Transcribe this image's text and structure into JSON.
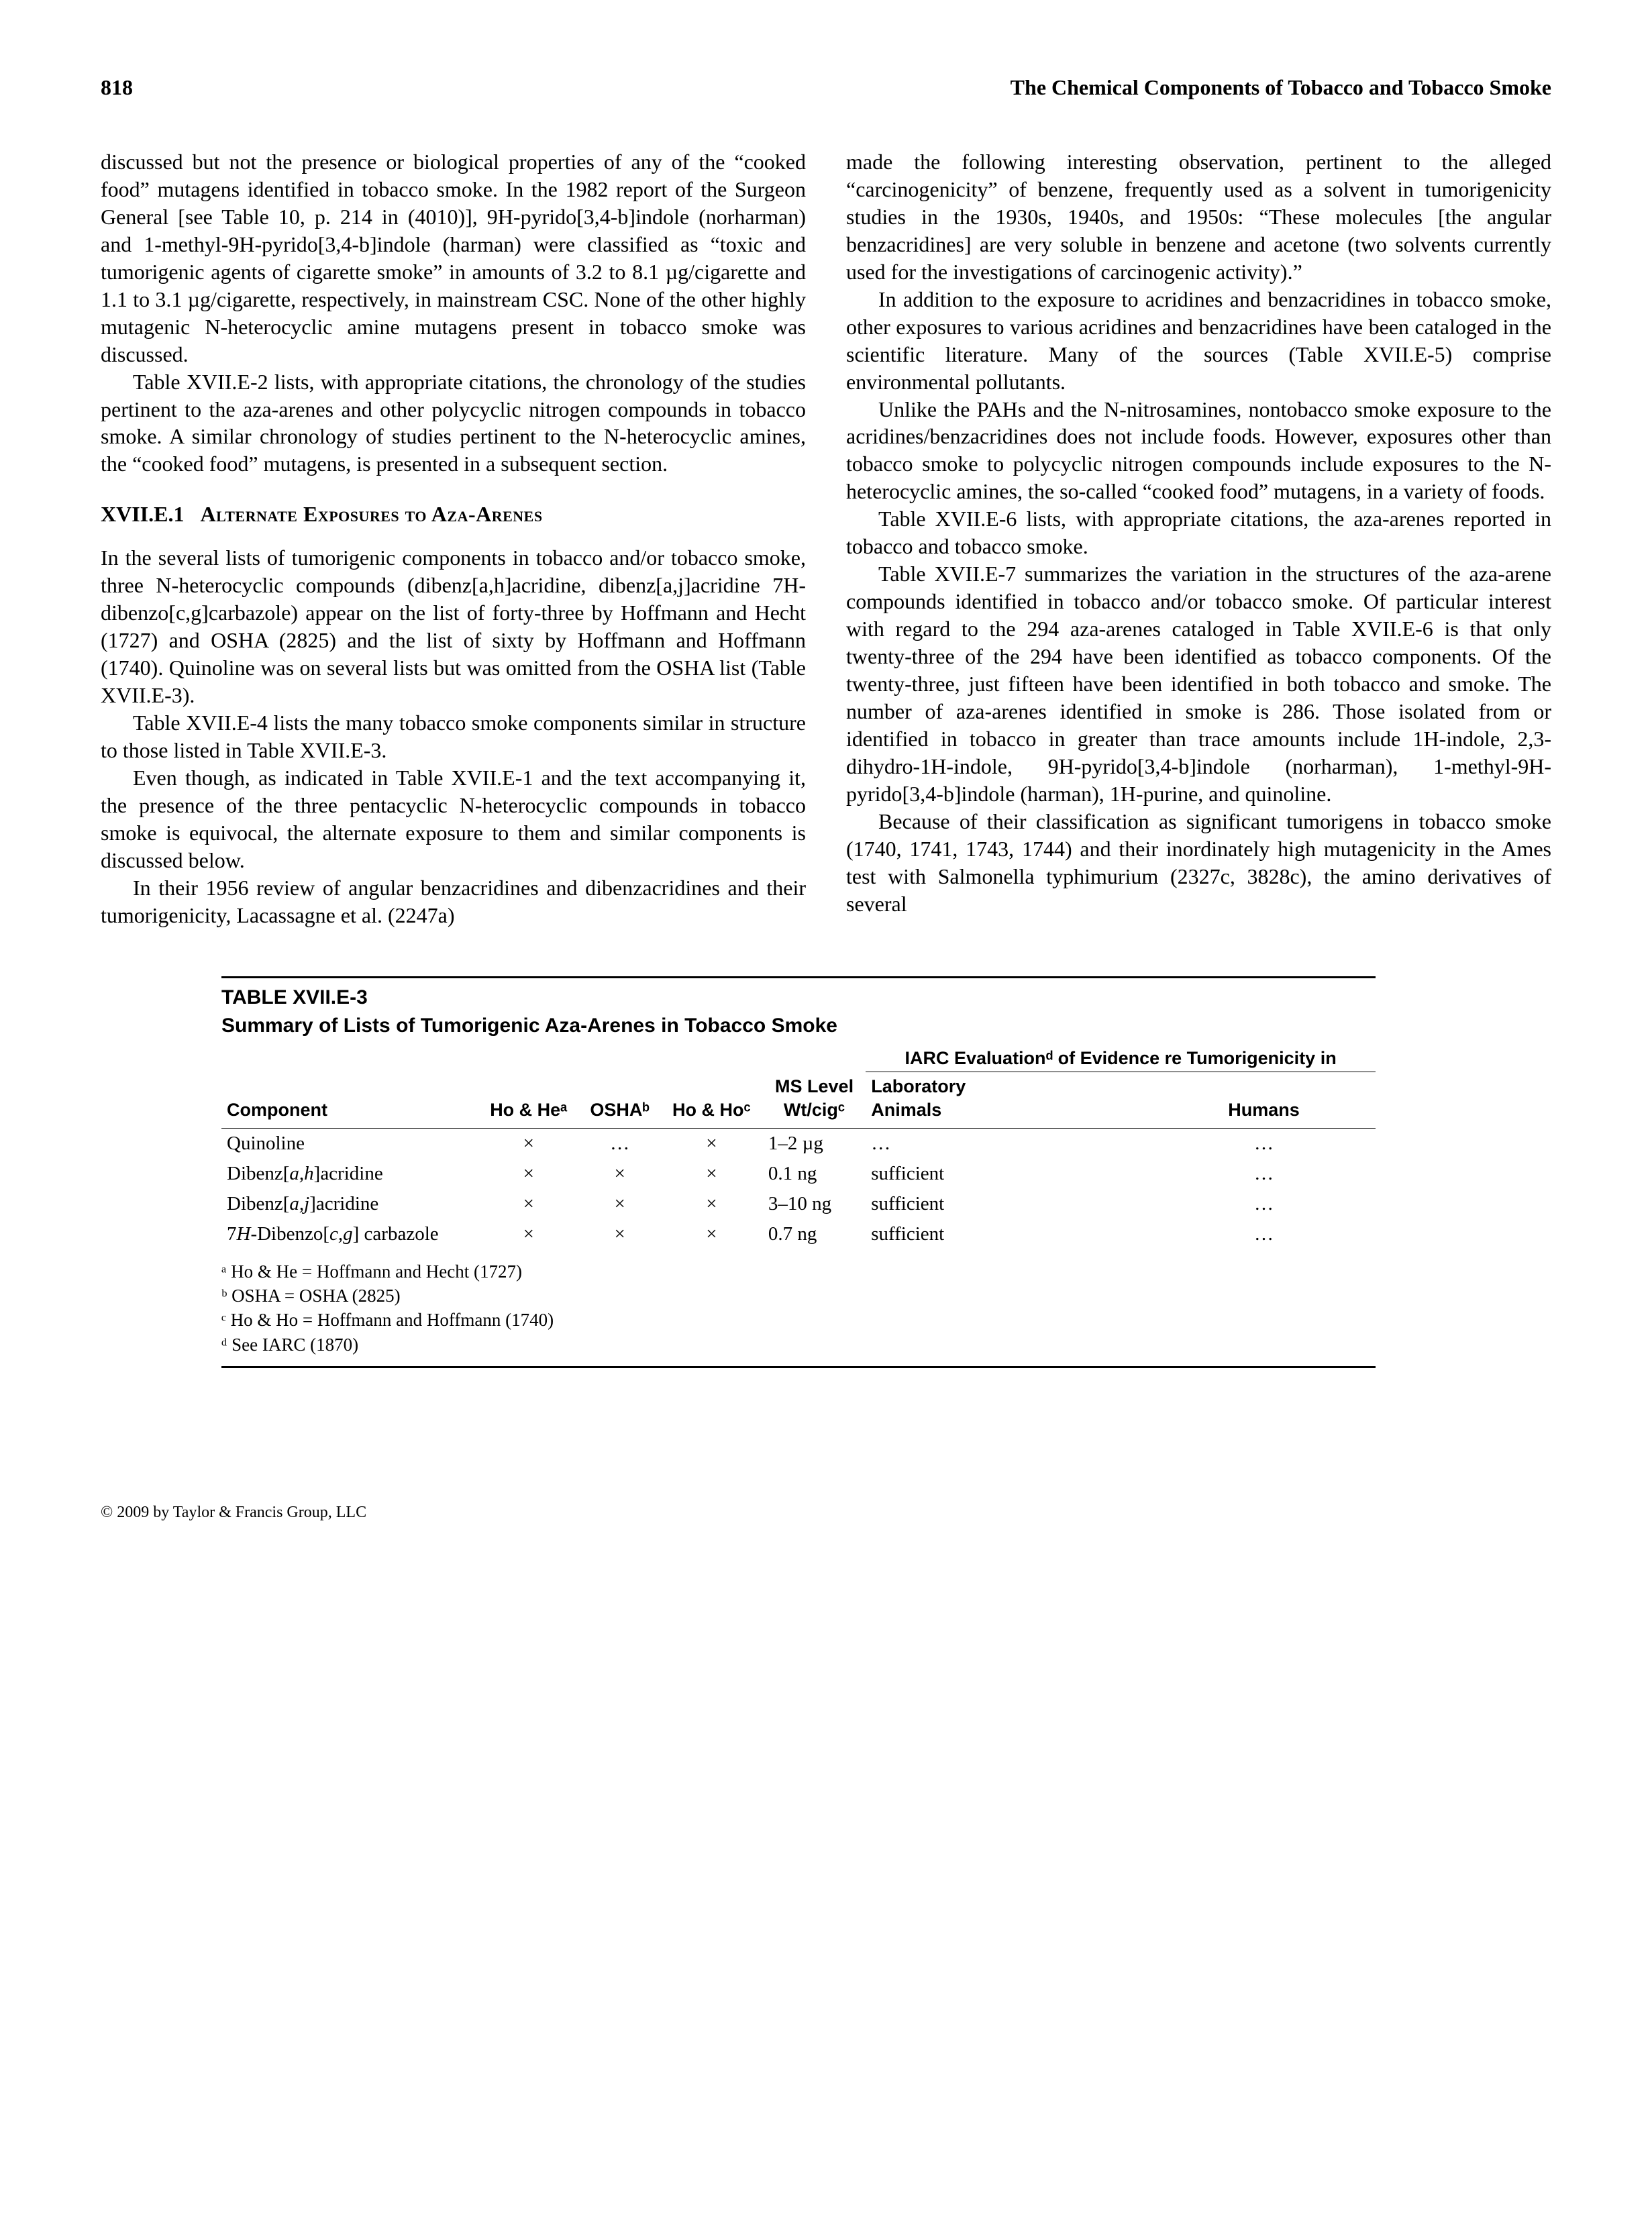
{
  "header": {
    "page_number": "818",
    "running_title": "The Chemical Components of Tobacco and Tobacco Smoke"
  },
  "left_column": {
    "p1": "discussed but not the presence or biological properties of any of the “cooked food” mutagens identified in tobacco smoke. In the 1982 report of the Surgeon General [see Table 10, p. 214 in (4010)], 9H-pyrido[3,4-b]indole (norharman) and 1-methyl-9H-pyrido[3,4-b]indole (harman) were classified as “toxic and tumorigenic agents of cigarette smoke” in amounts of 3.2 to 8.1 µg/cigarette and 1.1 to 3.1 µg/cigarette, respectively, in mainstream CSC. None of the other highly mutagenic N-heterocyclic amine mutagens present in tobacco smoke was discussed.",
    "p2": "Table XVII.E-2 lists, with appropriate citations, the chronology of the studies pertinent to the aza-arenes and other polycyclic nitrogen compounds in tobacco smoke. A similar chronology of studies pertinent to the N-heterocyclic amines, the “cooked food” mutagens, is presented in a subsequent section.",
    "section_num": "XVII.E.1",
    "section_title": "Alternate Exposures to Aza-Arenes",
    "p3": "In the several lists of tumorigenic components in tobacco and/or tobacco smoke, three N-heterocyclic compounds (dibenz[a,h]acridine, dibenz[a,j]acridine 7H-dibenzo[c,g]carbazole) appear on the list of forty-three by Hoffmann and Hecht (1727) and OSHA (2825) and the list of sixty by Hoffmann and Hoffmann (1740). Quinoline was on several lists but was omitted from the OSHA list (Table XVII.E-3).",
    "p4": "Table XVII.E-4 lists the many tobacco smoke components similar in structure to those listed in Table XVII.E-3.",
    "p5": "Even though, as indicated in Table XVII.E-1 and the text accompanying it, the presence of the three pentacyclic N-heterocyclic compounds in tobacco smoke is equivocal, the alternate exposure to them and similar components is discussed below.",
    "p6": "In their 1956 review of angular benzacridines and dibenzacridines and their tumorigenicity, Lacassagne et al. (2247a)"
  },
  "right_column": {
    "p1": "made the following interesting observation, pertinent to the alleged “carcinogenicity” of benzene, frequently used as a solvent in tumorigenicity studies in the 1930s, 1940s, and 1950s: “These molecules [the angular benzacridines] are very soluble in benzene and acetone (two solvents currently used for the investigations of carcinogenic activity).”",
    "p2": "In addition to the exposure to acridines and benzacridines in tobacco smoke, other exposures to various acridines and benzacridines have been cataloged in the scientific literature. Many of the sources (Table XVII.E-5) comprise environmental pollutants.",
    "p3": "Unlike the PAHs and the N-nitrosamines, nontobacco smoke exposure to the acridines/benzacridines does not include foods. However, exposures other than tobacco smoke to polycyclic nitrogen compounds include exposures to the N-heterocyclic amines, the so-called “cooked food” mutagens, in a variety of foods.",
    "p4": "Table XVII.E-6 lists, with appropriate citations, the aza-arenes reported in tobacco and tobacco smoke.",
    "p5": "Table XVII.E-7 summarizes the variation in the structures of the aza-arene compounds identified in tobacco and/or tobacco smoke. Of particular interest with regard to the 294 aza-arenes cataloged in Table XVII.E-6 is that only twenty-three of the 294 have been identified as tobacco components. Of the twenty-three, just fifteen have been identified in both tobacco and smoke. The number of aza-arenes identified in smoke is 286. Those isolated from or identified in tobacco in greater than trace amounts include 1H-indole, 2,3-dihydro-1H-indole, 9H-pyrido[3,4-b]indole (norharman), 1-methyl-9H-pyrido[3,4-b]indole (harman), 1H-purine, and quinoline.",
    "p6": "Because of their classification as significant tumorigens in tobacco smoke (1740, 1741, 1743, 1744) and their inordinately high mutagenicity in the Ames test with Salmonella typhimurium (2327c, 3828c), the amino derivatives of several"
  },
  "table": {
    "label": "TABLE XVII.E-3",
    "caption": "Summary of Lists of Tumorigenic Aza-Arenes in Tobacco Smoke",
    "spanner": "IARC Evaluationᵈ of Evidence re Tumorigenicity in",
    "headers": {
      "component": "Component",
      "hohe": "Ho & Heᵃ",
      "osha": "OSHAᵇ",
      "hoho": "Ho & Hoᶜ",
      "mslevel_line1": "MS Level",
      "mslevel_line2": "Wt/cigᶜ",
      "animals_line1": "Laboratory",
      "animals_line2": "Animals",
      "humans": "Humans"
    },
    "rows": [
      {
        "component": "Quinoline",
        "hohe": "×",
        "osha": "…",
        "hoho": "×",
        "ms": "1–2 µg",
        "animals": "…",
        "humans": "…"
      },
      {
        "component": "Dibenz[a,h]acridine",
        "hohe": "×",
        "osha": "×",
        "hoho": "×",
        "ms": "0.1 ng",
        "animals": "sufficient",
        "humans": "…"
      },
      {
        "component": "Dibenz[a,j]acridine",
        "hohe": "×",
        "osha": "×",
        "hoho": "×",
        "ms": "3–10 ng",
        "animals": "sufficient",
        "humans": "…"
      },
      {
        "component": "7H-Dibenzo[c,g] carbazole",
        "hohe": "×",
        "osha": "×",
        "hoho": "×",
        "ms": "0.7 ng",
        "animals": "sufficient",
        "humans": "…"
      }
    ],
    "footnotes": {
      "a": "ᵃ Ho & He = Hoffmann and Hecht (1727)",
      "b": "ᵇ OSHA = OSHA (2825)",
      "c": "ᶜ Ho & Ho = Hoffmann and Hoffmann (1740)",
      "d": "ᵈ See IARC (1870)"
    }
  },
  "copyright": "© 2009 by Taylor & Francis Group, LLC"
}
